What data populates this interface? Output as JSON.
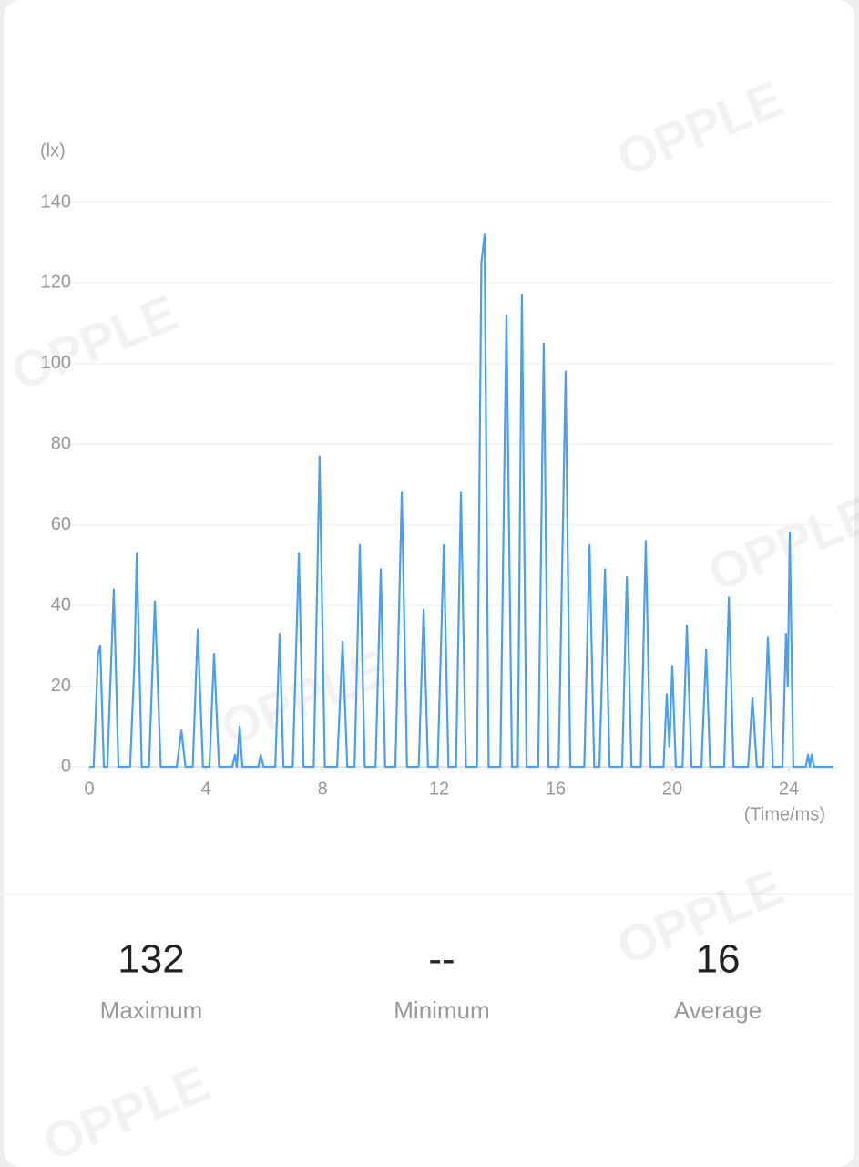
{
  "chart_data": {
    "type": "line",
    "ylabel": "(lx)",
    "xlabel": "(Time/ms)",
    "color": "#4a9ff0",
    "grid": true,
    "xlim": [
      0,
      25.53
    ],
    "xticks": [
      0,
      4,
      8,
      12,
      16,
      20,
      24
    ],
    "ylim": [
      0,
      140
    ],
    "yticks": [
      0,
      20,
      40,
      60,
      80,
      100,
      120,
      140
    ],
    "x": [
      0,
      0.15,
      0.3,
      0.375,
      0.5,
      0.62,
      0.84,
      1.0,
      1.4,
      1.55,
      1.63,
      1.8,
      2.05,
      2.25,
      2.45,
      3.0,
      3.16,
      3.3,
      3.55,
      3.72,
      3.9,
      4.12,
      4.28,
      4.45,
      4.9,
      5.0,
      5.06,
      5.16,
      5.25,
      5.8,
      5.88,
      5.98,
      6.38,
      6.53,
      6.66,
      6.98,
      7.19,
      7.35,
      7.7,
      7.9,
      8.08,
      8.5,
      8.69,
      8.85,
      9.1,
      9.28,
      9.45,
      9.82,
      10.0,
      10.15,
      10.5,
      10.72,
      10.9,
      11.3,
      11.47,
      11.62,
      11.95,
      12.16,
      12.32,
      12.58,
      12.75,
      12.92,
      13.3,
      13.45,
      13.56,
      13.7,
      14.1,
      14.31,
      14.5,
      14.7,
      14.84,
      15.0,
      15.4,
      15.59,
      15.75,
      16.1,
      16.34,
      16.5,
      16.98,
      17.16,
      17.32,
      17.5,
      17.69,
      17.85,
      18.28,
      18.44,
      18.6,
      18.92,
      19.09,
      19.25,
      19.7,
      19.81,
      19.9,
      20.0,
      20.12,
      20.35,
      20.5,
      20.66,
      21.0,
      21.16,
      21.3,
      21.78,
      21.94,
      22.1,
      22.6,
      22.75,
      22.9,
      23.12,
      23.28,
      23.45,
      23.78,
      23.9,
      23.96,
      24.03,
      24.15,
      24.58,
      24.66,
      24.72,
      24.78,
      24.86,
      25.53
    ],
    "values": [
      0,
      0,
      28,
      30,
      0,
      0,
      44,
      0,
      0,
      26,
      53,
      0,
      0,
      41,
      0,
      0,
      9,
      0,
      0,
      34,
      0,
      0,
      28,
      0,
      0,
      3,
      0,
      10,
      0,
      0,
      3,
      0,
      0,
      33,
      0,
      0,
      53,
      0,
      0,
      77,
      0,
      0,
      31,
      0,
      0,
      55,
      0,
      0,
      49,
      0,
      0,
      68,
      0,
      0,
      39,
      0,
      0,
      55,
      0,
      0,
      68,
      0,
      0,
      125,
      132,
      0,
      0,
      112,
      0,
      0,
      117,
      0,
      0,
      105,
      0,
      0,
      98,
      0,
      0,
      55,
      0,
      0,
      49,
      0,
      0,
      47,
      0,
      0,
      56,
      0,
      0,
      18,
      5,
      25,
      0,
      0,
      35,
      0,
      0,
      29,
      0,
      0,
      42,
      0,
      0,
      17,
      0,
      0,
      32,
      0,
      0,
      33,
      20,
      58,
      0,
      0,
      3,
      0,
      3,
      0,
      0
    ]
  },
  "stats": [
    {
      "value": "132",
      "label": "Maximum"
    },
    {
      "value": "--",
      "label": "Minimum"
    },
    {
      "value": "16",
      "label": "Average"
    }
  ],
  "watermark": "OPPLE"
}
